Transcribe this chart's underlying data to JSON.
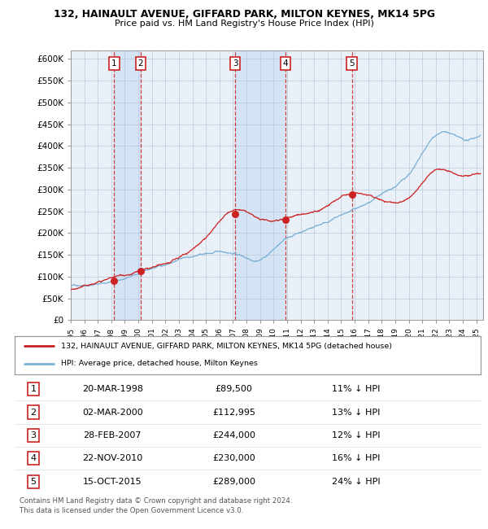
{
  "title1": "132, HAINAULT AVENUE, GIFFARD PARK, MILTON KEYNES, MK14 5PG",
  "title2": "Price paid vs. HM Land Registry's House Price Index (HPI)",
  "ylim": [
    0,
    620000
  ],
  "yticks": [
    0,
    50000,
    100000,
    150000,
    200000,
    250000,
    300000,
    350000,
    400000,
    450000,
    500000,
    550000,
    600000
  ],
  "ytick_labels": [
    "£0",
    "£50K",
    "£100K",
    "£150K",
    "£200K",
    "£250K",
    "£300K",
    "£350K",
    "£400K",
    "£450K",
    "£500K",
    "£550K",
    "£600K"
  ],
  "xlim_start": 1995.0,
  "xlim_end": 2025.5,
  "transactions": [
    {
      "num": 1,
      "date": "20-MAR-1998",
      "year": 1998.21,
      "price": 89500,
      "pct": "11%",
      "dir": "↓"
    },
    {
      "num": 2,
      "date": "02-MAR-2000",
      "year": 2000.17,
      "price": 112995,
      "pct": "13%",
      "dir": "↓"
    },
    {
      "num": 3,
      "date": "28-FEB-2007",
      "year": 2007.16,
      "price": 244000,
      "pct": "12%",
      "dir": "↓"
    },
    {
      "num": 4,
      "date": "22-NOV-2010",
      "year": 2010.89,
      "price": 230000,
      "pct": "16%",
      "dir": "↓"
    },
    {
      "num": 5,
      "date": "15-OCT-2015",
      "year": 2015.79,
      "price": 289000,
      "pct": "24%",
      "dir": "↓"
    }
  ],
  "legend_line1": "132, HAINAULT AVENUE, GIFFARD PARK, MILTON KEYNES, MK14 5PG (detached house)",
  "legend_line2": "HPI: Average price, detached house, Milton Keynes",
  "footer1": "Contains HM Land Registry data © Crown copyright and database right 2024.",
  "footer2": "This data is licensed under the Open Government Licence v3.0.",
  "hpi_color": "#7ab0d4",
  "price_color": "#cc2222",
  "bg_color": "#eaf0f8",
  "grid_color": "#b8c8d8",
  "shade_color": "#d4e4f4"
}
